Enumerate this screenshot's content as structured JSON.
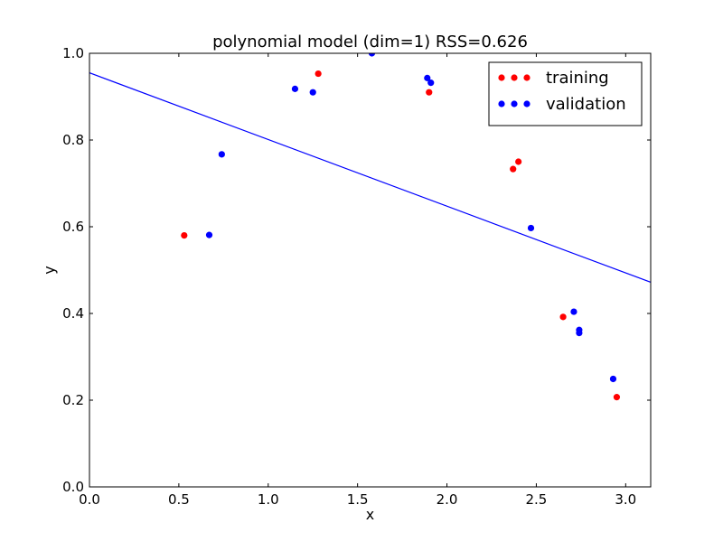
{
  "chart_data": {
    "type": "scatter",
    "title": "polynomial model (dim=1) RSS=0.626",
    "xlabel": "x",
    "ylabel": "y",
    "xlim": [
      0.0,
      3.14
    ],
    "ylim": [
      0.0,
      1.0
    ],
    "xticks": [
      "0.0",
      "0.5",
      "1.0",
      "1.5",
      "2.0",
      "2.5",
      "3.0"
    ],
    "xtick_values": [
      0.0,
      0.5,
      1.0,
      1.5,
      2.0,
      2.5,
      3.0
    ],
    "yticks": [
      "0.0",
      "0.2",
      "0.4",
      "0.6",
      "0.8",
      "1.0"
    ],
    "ytick_values": [
      0.0,
      0.2,
      0.4,
      0.6,
      0.8,
      1.0
    ],
    "grid": false,
    "legend_position": "top-right",
    "series": [
      {
        "name": "training",
        "kind": "scatter",
        "color": "#ff0000",
        "points": [
          {
            "x": 0.53,
            "y": 0.58
          },
          {
            "x": 1.28,
            "y": 0.953
          },
          {
            "x": 1.9,
            "y": 0.91
          },
          {
            "x": 2.37,
            "y": 0.733
          },
          {
            "x": 2.4,
            "y": 0.75
          },
          {
            "x": 2.65,
            "y": 0.392
          },
          {
            "x": 2.95,
            "y": 0.207
          }
        ]
      },
      {
        "name": "validation",
        "kind": "scatter",
        "color": "#0000ff",
        "points": [
          {
            "x": 0.67,
            "y": 0.581
          },
          {
            "x": 0.74,
            "y": 0.767
          },
          {
            "x": 1.15,
            "y": 0.918
          },
          {
            "x": 1.25,
            "y": 0.91
          },
          {
            "x": 1.58,
            "y": 1.0
          },
          {
            "x": 1.89,
            "y": 0.943
          },
          {
            "x": 1.91,
            "y": 0.932
          },
          {
            "x": 2.47,
            "y": 0.597
          },
          {
            "x": 2.71,
            "y": 0.404
          },
          {
            "x": 2.74,
            "y": 0.355
          },
          {
            "x": 2.74,
            "y": 0.362
          },
          {
            "x": 2.93,
            "y": 0.249
          }
        ]
      },
      {
        "name": "",
        "kind": "line",
        "color": "#0000ff",
        "points": [
          {
            "x": 0.0,
            "y": 0.955
          },
          {
            "x": 3.14,
            "y": 0.472
          }
        ]
      }
    ]
  }
}
